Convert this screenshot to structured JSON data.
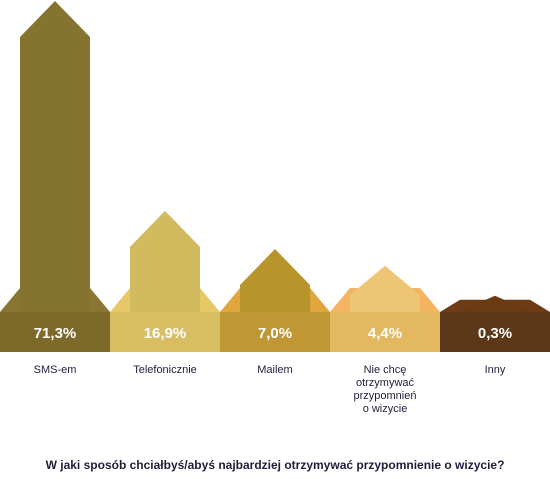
{
  "chart_data": {
    "type": "bar",
    "title": "W jaki sposób chciałbyś/abyś najbardziej otrzymywać przypomnienie o wizycie?",
    "ylim": [
      0,
      71.3
    ],
    "categories": [
      "SMS-em",
      "Telefonicznie",
      "Mailem",
      "Nie chcę\notrzymywać\nprzypomnień\no wizycie",
      "Inny"
    ],
    "values": [
      71.3,
      16.9,
      7.0,
      4.4,
      0.3
    ],
    "value_labels": [
      "71,3%",
      "16,9%",
      "7,0%",
      "4,4%",
      "0,3%"
    ],
    "colors": {
      "bars": [
        "#857430",
        "#d2bb5f",
        "#b7952b",
        "#edc575",
        "#6a3a10"
      ],
      "bases": [
        "#7d6a2b",
        "#d9bd63",
        "#c19734",
        "#e3b860",
        "#5b3817"
      ],
      "base_tops": [
        "#8a7632",
        "#e7c766",
        "#e0a53d",
        "#f4b461",
        "#6f3a16"
      ]
    }
  }
}
